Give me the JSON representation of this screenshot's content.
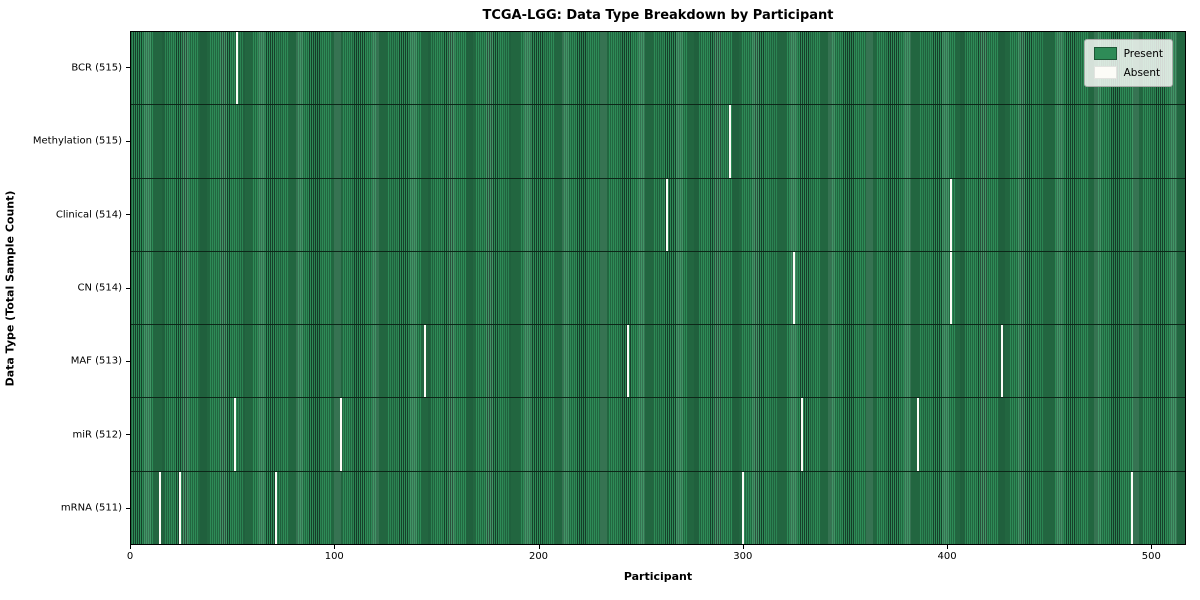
{
  "title": "TCGA-LGG: Data Type Breakdown by Participant",
  "xlabel": "Participant",
  "ylabel": "Data Type (Total Sample Count)",
  "legend": {
    "present_label": "Present",
    "absent_label": "Absent"
  },
  "colors": {
    "present": "#2e8b57",
    "present_edge": "#16402a",
    "absent": "#fcfcf7",
    "legend_border": "#a9aca9"
  },
  "chart_data": {
    "type": "heatmap",
    "title": "TCGA-LGG: Data Type Breakdown by Participant",
    "xlabel": "Participant",
    "ylabel": "Data Type (Total Sample Count)",
    "legend": [
      "Present",
      "Absent"
    ],
    "legend_position": "upper right",
    "n_participants": 516,
    "x_axis_max": 517,
    "x_ticks": [
      0,
      100,
      200,
      300,
      400,
      500
    ],
    "rows": [
      {
        "label": "BCR (515)",
        "total": 515,
        "absent_at": [
          52
        ]
      },
      {
        "label": "Methylation (515)",
        "total": 515,
        "absent_at": [
          294
        ]
      },
      {
        "label": "Clinical (514)",
        "total": 514,
        "absent_at": [
          263,
          402
        ]
      },
      {
        "label": "CN (514)",
        "total": 514,
        "absent_at": [
          325,
          402
        ]
      },
      {
        "label": "MAF (513)",
        "total": 513,
        "absent_at": [
          144,
          244,
          427
        ]
      },
      {
        "label": "miR (512)",
        "total": 512,
        "absent_at": [
          51,
          103,
          329,
          386
        ]
      },
      {
        "label": "mRNA (511)",
        "total": 511,
        "absent_at": [
          14,
          24,
          71,
          300,
          491
        ]
      }
    ]
  }
}
